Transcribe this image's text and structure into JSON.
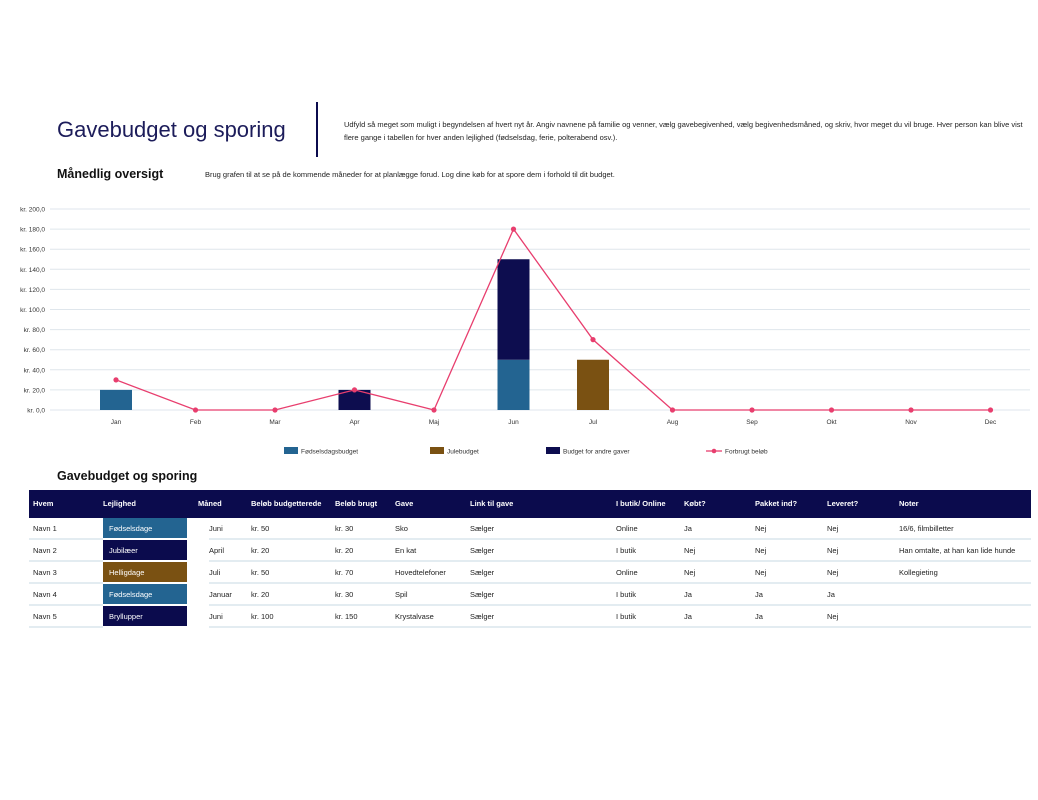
{
  "header": {
    "title": "Gavebudget og sporing",
    "intro": "Udfyld så meget som muligt i begyndelsen af hvert nyt år. Angiv navnene på familie og venner, vælg gavebegivenhed, vælg begivenhedsmåned, og skriv, hvor meget du vil bruge. Hver person kan blive vist flere gange i tabellen for hver anden lejlighed (fødselsdag, ferie, polterabend osv.)."
  },
  "overview": {
    "title": "Månedlig oversigt",
    "description": "Brug grafen til at se på de kommende måneder for at planlægge forud. Log dine køb for at spore dem i forhold til dit budget."
  },
  "chart_data": {
    "type": "bar",
    "stacked": true,
    "categories": [
      "Jan",
      "Feb",
      "Mar",
      "Apr",
      "Maj",
      "Jun",
      "Jul",
      "Aug",
      "Sep",
      "Okt",
      "Nov",
      "Dec"
    ],
    "ylim": [
      0,
      200
    ],
    "yticks": [
      "kr. 0,0",
      "kr. 20,0",
      "kr. 40,0",
      "kr. 60,0",
      "kr. 80,0",
      "kr. 100,0",
      "kr. 120,0",
      "kr. 140,0",
      "kr. 160,0",
      "kr. 180,0",
      "kr. 200,0"
    ],
    "grid": true,
    "legend": "bottom",
    "series": [
      {
        "name": "Fødselsdagsbudget",
        "type": "bar",
        "color": "#236491",
        "values": [
          20,
          0,
          0,
          0,
          0,
          50,
          0,
          0,
          0,
          0,
          0,
          0
        ]
      },
      {
        "name": "Julebudget",
        "type": "bar",
        "color": "#7a5112",
        "values": [
          0,
          0,
          0,
          0,
          0,
          0,
          50,
          0,
          0,
          0,
          0,
          0
        ]
      },
      {
        "name": "Budget for andre gaver",
        "type": "bar",
        "color": "#0d0d4f",
        "values": [
          0,
          0,
          0,
          20,
          0,
          100,
          0,
          0,
          0,
          0,
          0,
          0
        ]
      },
      {
        "name": "Forbrugt beløb",
        "type": "line",
        "color": "#e83e6e",
        "values": [
          30,
          0,
          0,
          20,
          0,
          180,
          70,
          0,
          0,
          0,
          0,
          0
        ]
      }
    ]
  },
  "table": {
    "title": "Gavebudget og sporing",
    "headers": [
      "Hvem",
      "Lejlighed",
      "Måned",
      "Beløb budgetterede",
      "Beløb brugt",
      "Gave",
      "Link til gave",
      "I butik/ Online",
      "Købt?",
      "Pakket ind?",
      "Leveret?",
      "Noter"
    ],
    "event_colors": {
      "Fødselsdage": "#236491",
      "Jubilæer": "#0b0b4d",
      "Helligdage": "#7a5112",
      "Bryllupper": "#0b0b4d"
    },
    "rows": [
      [
        "Navn 1",
        "Fødselsdage",
        "Juni",
        "kr. 50",
        "kr. 30",
        "Sko",
        "Sælger",
        "Online",
        "Ja",
        "Nej",
        "Nej",
        "16/6, filmbilletter"
      ],
      [
        "Navn 2",
        "Jubilæer",
        "April",
        "kr. 20",
        "kr. 20",
        "En kat",
        "Sælger",
        "I butik",
        "Nej",
        "Nej",
        "Nej",
        "Han omtalte, at han kan lide hunde"
      ],
      [
        "Navn 3",
        "Helligdage",
        "Juli",
        "kr. 50",
        "kr. 70",
        "Hovedtelefoner",
        "Sælger",
        "Online",
        "Nej",
        "Nej",
        "Nej",
        "Kollegieting"
      ],
      [
        "Navn 4",
        "Fødselsdage",
        "Januar",
        "kr. 20",
        "kr. 30",
        "Spil",
        "Sælger",
        "I butik",
        "Ja",
        "Ja",
        "Ja",
        ""
      ],
      [
        "Navn 5",
        "Bryllupper",
        "Juni",
        "kr. 100",
        "kr. 150",
        "Krystalvase",
        "Sælger",
        "I butik",
        "Ja",
        "Ja",
        "Nej",
        ""
      ]
    ]
  }
}
